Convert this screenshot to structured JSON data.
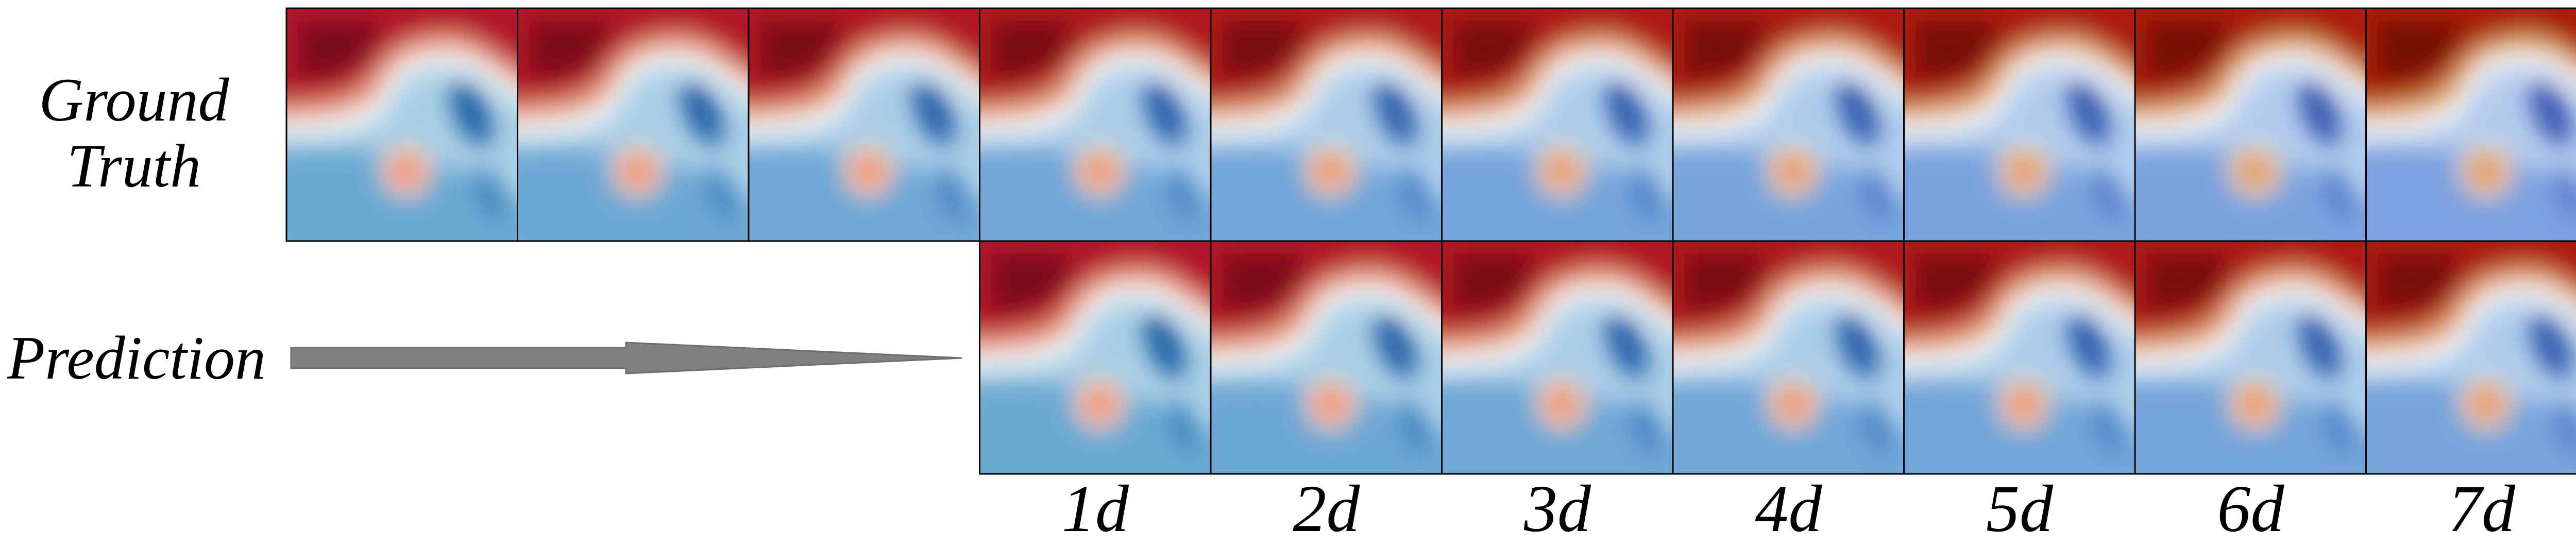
{
  "rows": [
    {
      "label": "Ground Truth"
    },
    {
      "label": "Prediction"
    }
  ],
  "time_labels": [
    "1d",
    "2d",
    "3d",
    "4d",
    "5d",
    "6d",
    "7d"
  ]
}
